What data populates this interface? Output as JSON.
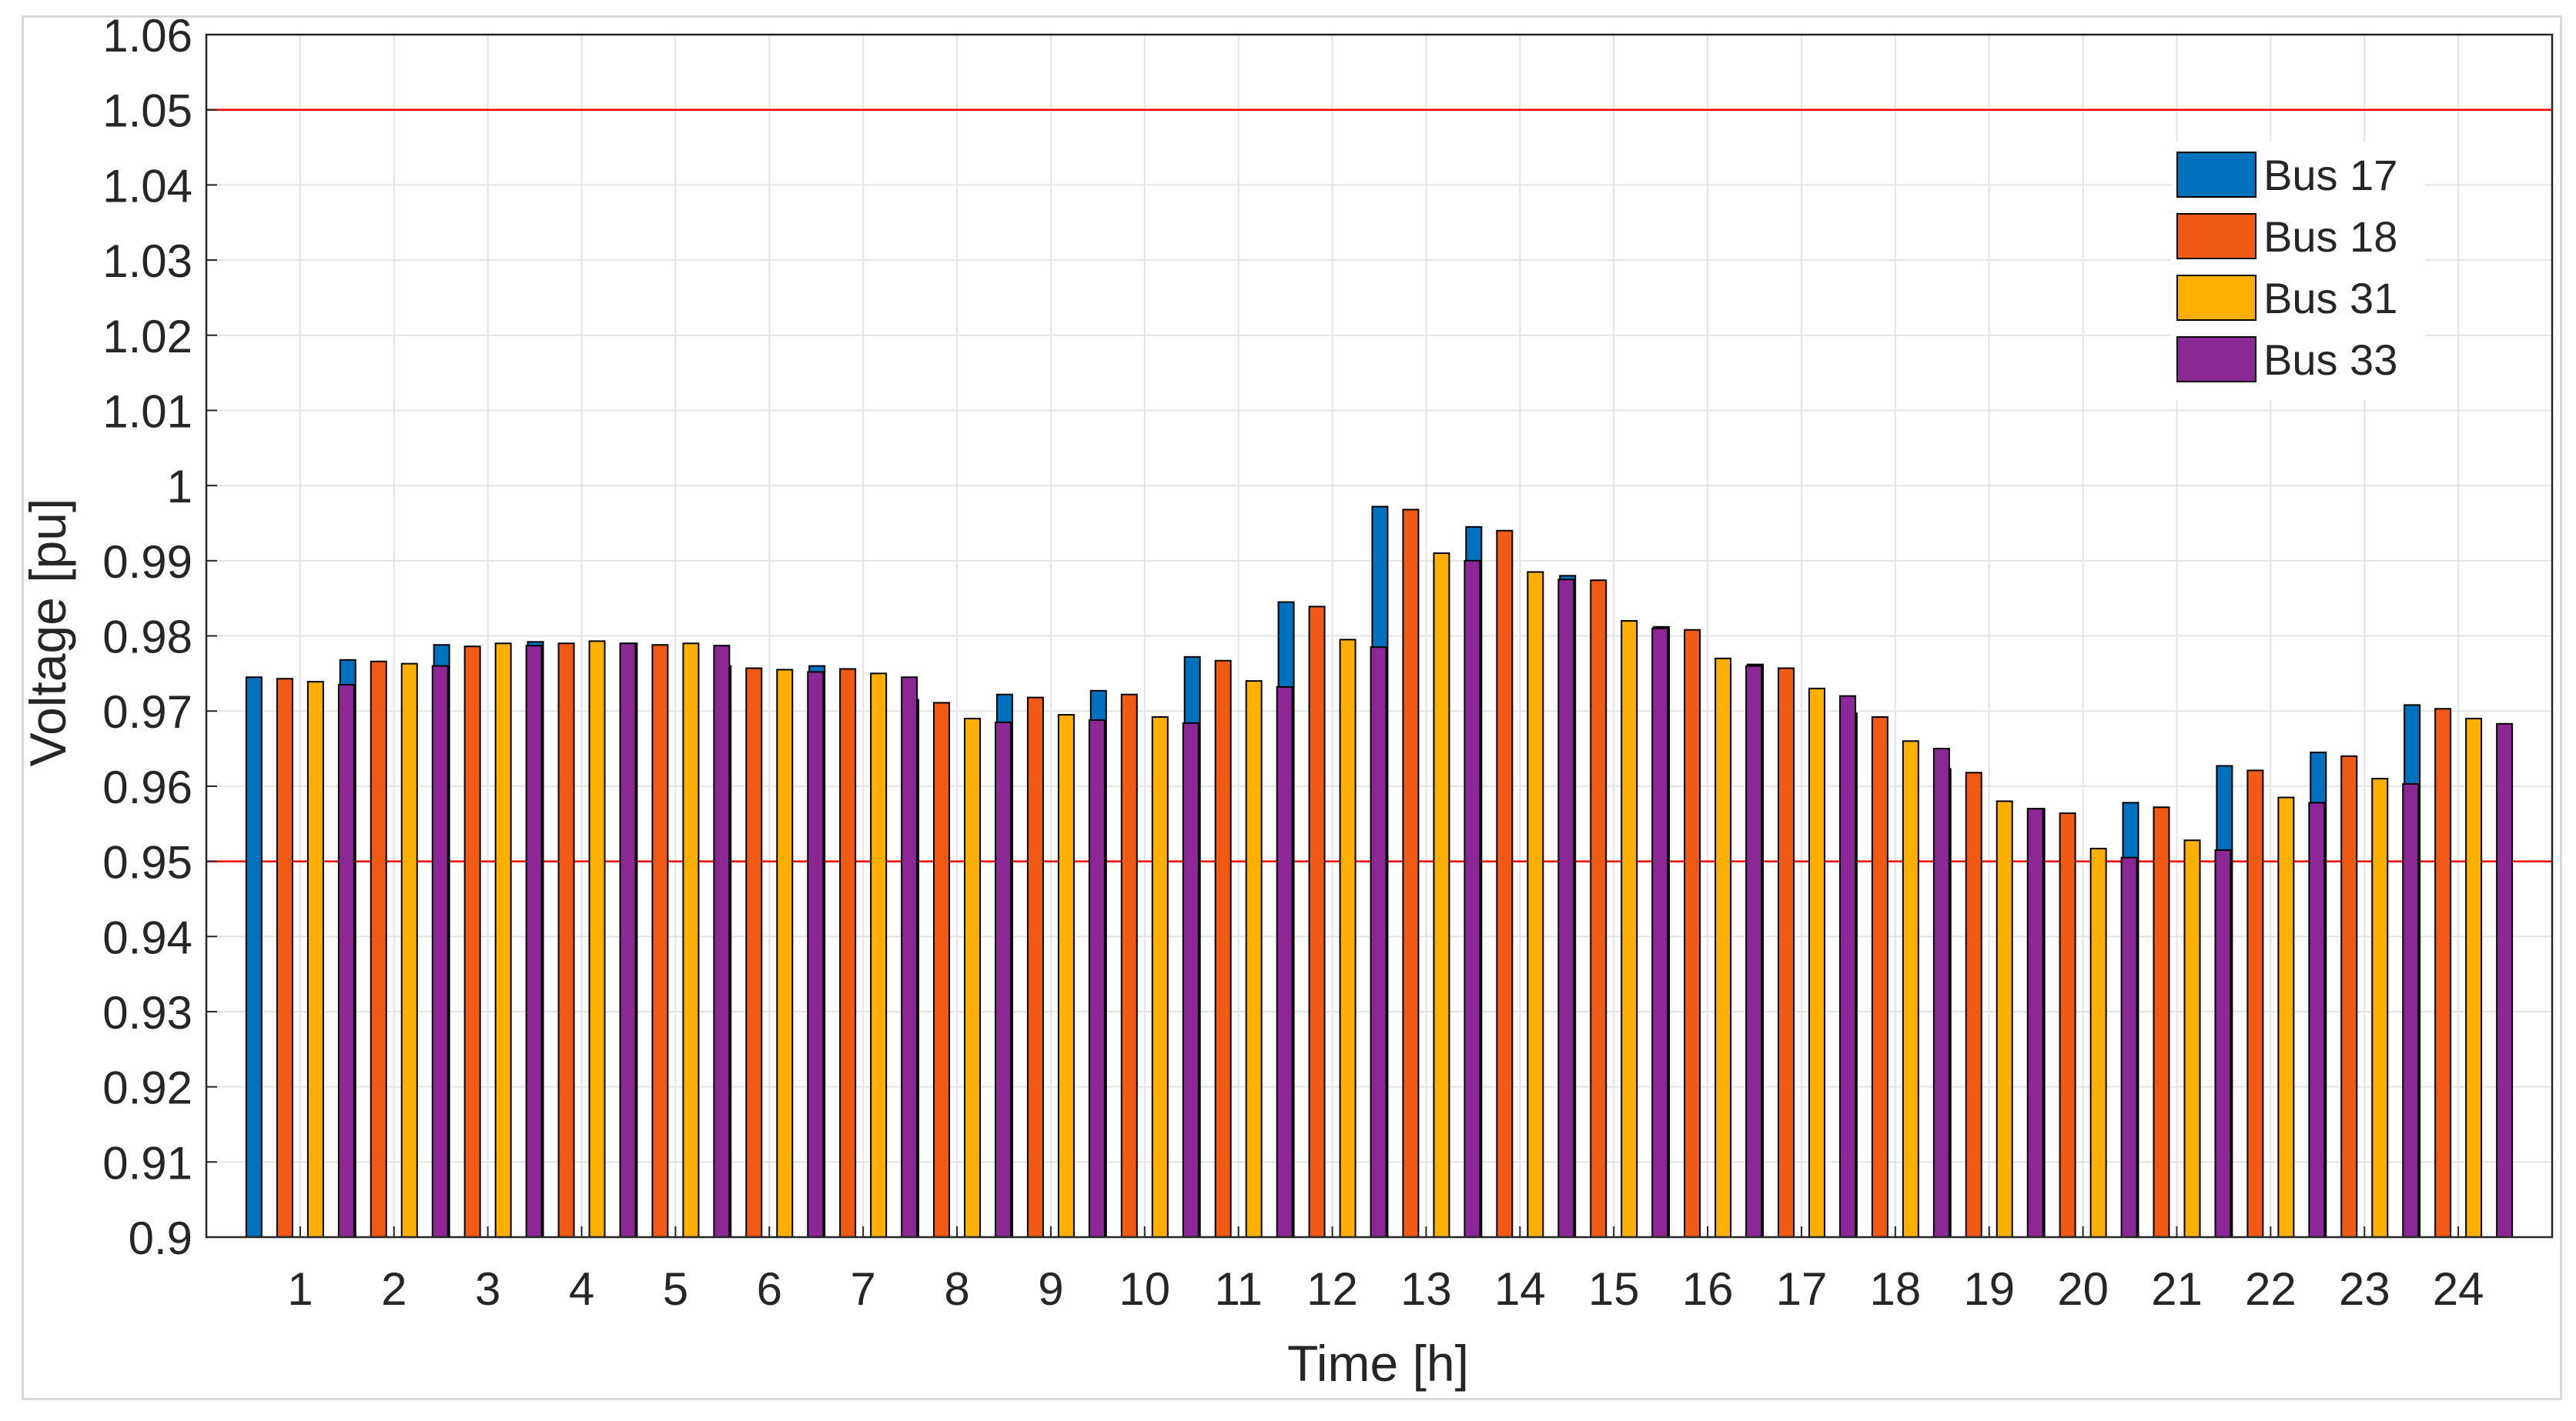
{
  "chart_data": {
    "type": "bar",
    "title": "",
    "xlabel": "Time [h]",
    "ylabel": "Voltage [pu]",
    "ylim": [
      0.9,
      1.06
    ],
    "yticks": [
      "0.9",
      "0.91",
      "0.92",
      "0.93",
      "0.94",
      "0.95",
      "0.96",
      "0.97",
      "0.98",
      "0.99",
      "1",
      "1.01",
      "1.02",
      "1.03",
      "1.04",
      "1.05",
      "1.06"
    ],
    "categories": [
      "1",
      "2",
      "3",
      "4",
      "5",
      "6",
      "7",
      "8",
      "9",
      "10",
      "11",
      "12",
      "13",
      "14",
      "15",
      "16",
      "17",
      "18",
      "19",
      "20",
      "21",
      "22",
      "23",
      "24"
    ],
    "grid": true,
    "legend_position": "top-right",
    "reference_lines": [
      {
        "value": 1.05,
        "color": "#ff0000"
      },
      {
        "value": 0.95,
        "color": "#ff0000"
      }
    ],
    "series": [
      {
        "name": "Bus 17",
        "color": "#0072bd",
        "values": [
          0.9745,
          0.9768,
          0.9788,
          0.9792,
          0.979,
          0.976,
          0.976,
          0.9715,
          0.9722,
          0.9727,
          0.9772,
          0.9845,
          0.9972,
          0.9945,
          0.988,
          0.9812,
          0.9762,
          0.9697,
          0.9623,
          0.957,
          0.9578,
          0.9627,
          0.9645,
          0.9708
        ]
      },
      {
        "name": "Bus 18",
        "color": "#f05a14",
        "values": [
          0.9743,
          0.9766,
          0.9786,
          0.979,
          0.9788,
          0.9757,
          0.9756,
          0.9711,
          0.9718,
          0.9722,
          0.9767,
          0.9839,
          0.9968,
          0.994,
          0.9874,
          0.9808,
          0.9757,
          0.9692,
          0.9618,
          0.9564,
          0.9572,
          0.9621,
          0.964,
          0.9703
        ]
      },
      {
        "name": "Bus 31",
        "color": "#ffaf00",
        "values": [
          0.9739,
          0.9763,
          0.979,
          0.9793,
          0.979,
          0.9755,
          0.975,
          0.969,
          0.9695,
          0.9692,
          0.974,
          0.9795,
          0.991,
          0.9885,
          0.982,
          0.977,
          0.973,
          0.966,
          0.958,
          0.9517,
          0.9528,
          0.9585,
          0.961,
          0.969
        ]
      },
      {
        "name": "Bus 33",
        "color": "#8c2896",
        "values": [
          0.9735,
          0.976,
          0.9787,
          0.979,
          0.9787,
          0.9752,
          0.9745,
          0.9685,
          0.9688,
          0.9684,
          0.9732,
          0.9785,
          0.99,
          0.9875,
          0.981,
          0.976,
          0.972,
          0.965,
          0.957,
          0.9505,
          0.9515,
          0.9578,
          0.9603,
          0.9683
        ]
      }
    ]
  }
}
